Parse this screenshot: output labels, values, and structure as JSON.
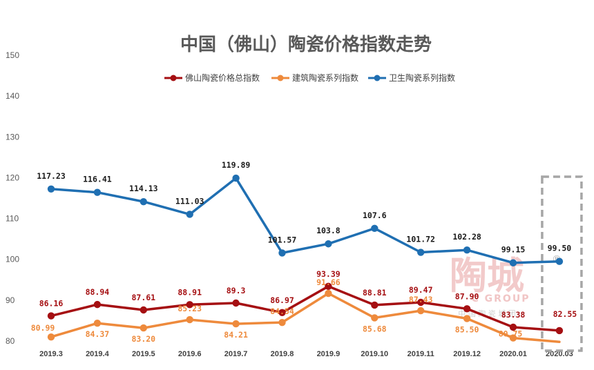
{
  "chart_data": {
    "type": "line",
    "title": "中国（佛山）陶瓷价格指数走势",
    "categories": [
      "2019.3",
      "2019.4",
      "2019.5",
      "2019.6",
      "2019.7",
      "2019.8",
      "2019.9",
      "2019.10",
      "2019.11",
      "2019.12",
      "2020.01",
      "2020.03"
    ],
    "ylim": [
      80,
      150
    ],
    "yticks": [
      80,
      90,
      100,
      110,
      120,
      130,
      140,
      150
    ],
    "grid": false,
    "legend_position": "top-center",
    "series": [
      {
        "name": "佛山陶瓷价格总指数",
        "color": "#a50f12",
        "values": [
          86.16,
          88.94,
          87.61,
          88.91,
          89.3,
          86.97,
          93.39,
          88.81,
          89.47,
          87.9,
          83.38,
          82.55
        ],
        "labels": [
          "86.16",
          "88.94",
          "87.61",
          "88.91",
          "89.3",
          "86.97",
          "93.39",
          "88.81",
          "89.47",
          "87.90",
          "83.38",
          "82.55"
        ]
      },
      {
        "name": "建筑陶瓷系列指数",
        "color": "#ee8a3c",
        "values": [
          80.99,
          84.37,
          83.2,
          85.23,
          84.21,
          84.54,
          91.66,
          85.68,
          87.43,
          85.5,
          80.75,
          79.8
        ],
        "labels": [
          "80.99",
          "84.37",
          "83.20",
          "85.23",
          "84.21",
          "84.54",
          "91.66",
          "85.68",
          "87.43",
          "85.50",
          "80.75",
          ""
        ]
      },
      {
        "name": "卫生陶瓷系列指数",
        "color": "#1f6fb2",
        "values": [
          117.23,
          116.41,
          114.13,
          111.03,
          119.89,
          101.57,
          103.8,
          107.6,
          101.72,
          102.28,
          99.15,
          99.5
        ],
        "labels": [
          "117.23",
          "116.41",
          "114.13",
          "111.03",
          "119.89",
          "101.57",
          "103.8",
          "107.6",
          "101.72",
          "102.28",
          "99.15",
          "99.50"
        ]
      }
    ],
    "highlight": {
      "category": "2020.03",
      "style": "dashed-box",
      "color": "#a6a6a6"
    },
    "watermark": {
      "text": "陶城",
      "sub": "C GROUP",
      "mark": "®",
      "small": "中 国 陶 瓷 城 团",
      "color": "#e8a0a0"
    }
  }
}
